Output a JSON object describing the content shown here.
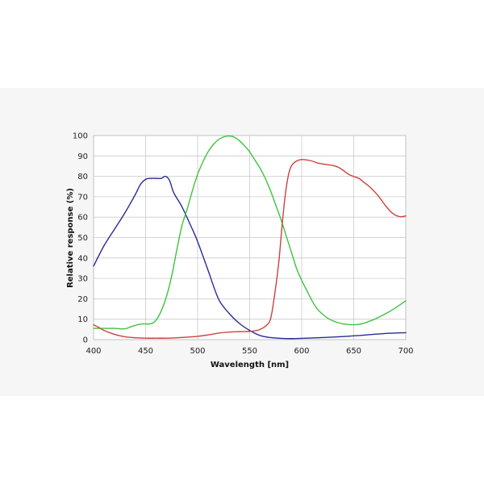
{
  "chart_data": {
    "type": "line",
    "xlabel": "Wavelength [nm]",
    "ylabel": "Relative response (%)",
    "xlim": [
      400,
      700
    ],
    "ylim": [
      0,
      100
    ],
    "xticks": [
      400,
      450,
      500,
      550,
      600,
      650,
      700
    ],
    "yticks": [
      0,
      10,
      20,
      30,
      40,
      50,
      60,
      70,
      80,
      90,
      100
    ],
    "grid": true,
    "legend": "none",
    "series": [
      {
        "color": "#2b2b95",
        "points": [
          [
            400,
            36
          ],
          [
            410,
            46
          ],
          [
            420,
            54
          ],
          [
            430,
            62
          ],
          [
            440,
            71
          ],
          [
            445,
            76
          ],
          [
            450,
            78.5
          ],
          [
            455,
            79
          ],
          [
            460,
            79
          ],
          [
            465,
            79
          ],
          [
            469,
            80
          ],
          [
            473,
            78
          ],
          [
            477,
            72
          ],
          [
            485,
            65
          ],
          [
            495,
            54
          ],
          [
            500,
            48
          ],
          [
            510,
            34
          ],
          [
            520,
            20
          ],
          [
            530,
            13
          ],
          [
            540,
            8
          ],
          [
            550,
            4.5
          ],
          [
            560,
            2
          ],
          [
            570,
            1
          ],
          [
            580,
            0.6
          ],
          [
            590,
            0.5
          ],
          [
            600,
            0.6
          ],
          [
            620,
            1
          ],
          [
            640,
            1.5
          ],
          [
            660,
            2.2
          ],
          [
            680,
            3
          ],
          [
            700,
            3.4
          ]
        ]
      },
      {
        "color": "#3ec23e",
        "points": [
          [
            400,
            5.5
          ],
          [
            410,
            5.5
          ],
          [
            420,
            5.5
          ],
          [
            430,
            5.3
          ],
          [
            437,
            6.5
          ],
          [
            445,
            7.6
          ],
          [
            455,
            7.8
          ],
          [
            460,
            9.5
          ],
          [
            465,
            14
          ],
          [
            470,
            21
          ],
          [
            475,
            31
          ],
          [
            480,
            44
          ],
          [
            485,
            56
          ],
          [
            490,
            64
          ],
          [
            495,
            73
          ],
          [
            500,
            81
          ],
          [
            505,
            87
          ],
          [
            510,
            92
          ],
          [
            515,
            95.5
          ],
          [
            520,
            98
          ],
          [
            525,
            99.3
          ],
          [
            530,
            99.8
          ],
          [
            535,
            99.2
          ],
          [
            540,
            97.5
          ],
          [
            545,
            95
          ],
          [
            550,
            92
          ],
          [
            555,
            88
          ],
          [
            560,
            84
          ],
          [
            565,
            79
          ],
          [
            570,
            73
          ],
          [
            575,
            66
          ],
          [
            580,
            59
          ],
          [
            585,
            51
          ],
          [
            590,
            43
          ],
          [
            595,
            35
          ],
          [
            600,
            29
          ],
          [
            605,
            24
          ],
          [
            610,
            19
          ],
          [
            615,
            15
          ],
          [
            620,
            12.5
          ],
          [
            625,
            10.5
          ],
          [
            630,
            9.2
          ],
          [
            635,
            8.3
          ],
          [
            640,
            7.7
          ],
          [
            645,
            7.4
          ],
          [
            650,
            7.3
          ],
          [
            655,
            7.5
          ],
          [
            660,
            8
          ],
          [
            665,
            9
          ],
          [
            670,
            10
          ],
          [
            680,
            12.5
          ],
          [
            690,
            15.5
          ],
          [
            700,
            19
          ]
        ]
      },
      {
        "color": "#cf4040",
        "points": [
          [
            400,
            7.2
          ],
          [
            405,
            6
          ],
          [
            410,
            4.5
          ],
          [
            420,
            2.6
          ],
          [
            430,
            1.4
          ],
          [
            440,
            0.9
          ],
          [
            450,
            0.7
          ],
          [
            460,
            0.7
          ],
          [
            470,
            0.7
          ],
          [
            480,
            0.9
          ],
          [
            490,
            1.2
          ],
          [
            500,
            1.6
          ],
          [
            510,
            2.3
          ],
          [
            520,
            3.2
          ],
          [
            530,
            3.7
          ],
          [
            540,
            3.9
          ],
          [
            550,
            4
          ],
          [
            555,
            4.3
          ],
          [
            560,
            5
          ],
          [
            565,
            6.5
          ],
          [
            570,
            10
          ],
          [
            574,
            22
          ],
          [
            578,
            38
          ],
          [
            581,
            55
          ],
          [
            584,
            70
          ],
          [
            587,
            80
          ],
          [
            590,
            85
          ],
          [
            595,
            87.5
          ],
          [
            600,
            88.2
          ],
          [
            605,
            88
          ],
          [
            610,
            87.5
          ],
          [
            615,
            86.6
          ],
          [
            620,
            86.1
          ],
          [
            625,
            85.7
          ],
          [
            630,
            85.3
          ],
          [
            635,
            84.5
          ],
          [
            640,
            82.9
          ],
          [
            645,
            81
          ],
          [
            650,
            79.9
          ],
          [
            655,
            79
          ],
          [
            660,
            77
          ],
          [
            665,
            75
          ],
          [
            670,
            72.5
          ],
          [
            675,
            69.5
          ],
          [
            680,
            66
          ],
          [
            685,
            63
          ],
          [
            690,
            61
          ],
          [
            695,
            60.2
          ],
          [
            700,
            60.6
          ]
        ]
      }
    ]
  }
}
